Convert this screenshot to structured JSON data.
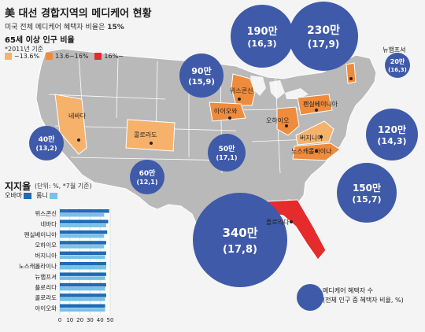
{
  "title": "美 대선 경합지역의 메디케어 현황",
  "subtitle_prefix": "미국 전체 메디케어 혜택자 비율은 ",
  "subtitle_value": "15%",
  "legend": {
    "heading": "65세 이상 인구 비율",
    "note": "*2011년 기준",
    "items": [
      {
        "label": "~13.6%",
        "color": "#f6b26b"
      },
      {
        "label": "13.6~16%",
        "color": "#ef8b3c"
      },
      {
        "label": "16%~",
        "color": "#e52b2b"
      }
    ]
  },
  "colors": {
    "land": "#b9b9b9",
    "bubble": "#3f5aa8",
    "tier1": "#f6b26b",
    "tier2": "#ef8b3c",
    "tier3": "#e52b2b",
    "obama": "#1f6bb5",
    "romney": "#78c1e8"
  },
  "states": [
    {
      "name": "네바다",
      "tier": "tier1"
    },
    {
      "name": "콜로라도",
      "tier": "tier1"
    },
    {
      "name": "위스콘신",
      "tier": "tier2"
    },
    {
      "name": "아이오와",
      "tier": "tier2"
    },
    {
      "name": "오하이오",
      "tier": "tier2"
    },
    {
      "name": "펜실베이니아",
      "tier": "tier2"
    },
    {
      "name": "버지니아",
      "tier": "tier1"
    },
    {
      "name": "노스캐롤라이나",
      "tier": "tier2"
    },
    {
      "name": "뉴햄프셔",
      "tier": "tier2"
    },
    {
      "name": "플로리다",
      "tier": "tier3"
    }
  ],
  "bubbles": [
    {
      "state": "네바다",
      "count": "40만",
      "pct": "(13,2)"
    },
    {
      "state": "콜로라도",
      "count": "60만",
      "pct": "(12,1)"
    },
    {
      "state": "아이오와",
      "count": "50만",
      "pct": "(17,1)"
    },
    {
      "state": "위스콘신",
      "count": "90만",
      "pct": "(15,9)"
    },
    {
      "state": "오하이오",
      "count": "190만",
      "pct": "(16,3)"
    },
    {
      "state": "펜실베이니아",
      "count": "230만",
      "pct": "(17,9)"
    },
    {
      "state": "뉴햄프셔",
      "count": "20만",
      "pct": "(16,3)"
    },
    {
      "state": "버지니아",
      "count": "120만",
      "pct": "(14,3)"
    },
    {
      "state": "노스캐롤라이나",
      "count": "150만",
      "pct": "(15,7)"
    },
    {
      "state": "플로리다",
      "count": "340만",
      "pct": "(17,8)"
    }
  ],
  "support_panel": {
    "title": "지지율",
    "note": "(단위: %, *7월 기준)",
    "legend": [
      "오바마",
      "롬니"
    ]
  },
  "chart_data": {
    "type": "bar",
    "orientation": "horizontal",
    "categories": [
      "위스콘신",
      "네바다",
      "펜실베이니아",
      "오하이오",
      "버지니아",
      "노스캐롤라이나",
      "뉴햄프셔",
      "플로리다",
      "콜로라도",
      "아이오와"
    ],
    "series": [
      {
        "name": "오바마",
        "values": [
          49,
          48,
          47,
          46,
          46,
          46,
          46,
          46,
          46,
          45
        ]
      },
      {
        "name": "롬니",
        "values": [
          44,
          46,
          44,
          44,
          45,
          46,
          45,
          45,
          45,
          45
        ]
      }
    ],
    "xlim": [
      0,
      50
    ],
    "ticks": [
      0,
      10,
      20,
      30,
      40,
      50
    ]
  },
  "footnote": {
    "line1": "메디케어 혜택자 수",
    "line2": "(전체 인구 중 혜택자 비율, %)"
  }
}
